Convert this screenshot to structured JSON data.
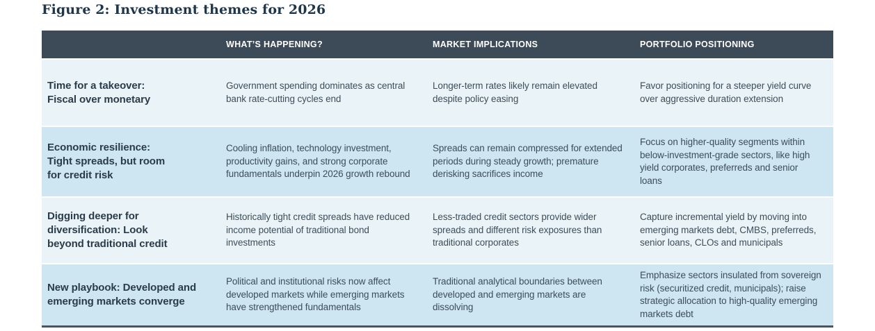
{
  "figure": {
    "title": "Figure 2: Investment themes for 2026"
  },
  "table": {
    "columns": [
      "",
      "WHAT’S HAPPENING?",
      "MARKET IMPLICATIONS",
      "PORTFOLIO POSITIONING"
    ],
    "rows": [
      {
        "theme": "Time for a takeover:\nFiscal over monetary",
        "whats_happening": "Government spending dominates as central bank rate-cutting cycles end",
        "market_implications": "Longer-term rates likely remain elevated despite policy easing",
        "portfolio_positioning": "Favor positioning for a steeper yield curve over aggressive duration extension"
      },
      {
        "theme": "Economic resilience:\nTight spreads, but room\nfor credit risk",
        "whats_happening": "Cooling inflation, technology investment, productivity gains, and strong corporate fundamentals underpin 2026 growth rebound",
        "market_implications": "Spreads can remain compressed for extended periods during steady growth; premature derisking sacrifices income",
        "portfolio_positioning": "Focus on higher-quality segments within below-investment-grade sectors, like high yield corporates, preferreds and senior loans"
      },
      {
        "theme": "Digging deeper for\ndiversification: Look\nbeyond traditional credit",
        "whats_happening": "Historically tight credit spreads have reduced income potential of traditional bond investments",
        "market_implications": "Less-traded credit sectors provide wider spreads and different risk exposures than traditional corporates",
        "portfolio_positioning": "Capture incremental yield by moving into emerging markets debt, CMBS, preferreds, senior loans, CLOs and municipals"
      },
      {
        "theme": "New playbook: Developed and\nemerging markets converge",
        "whats_happening": "Political and institutional risks now affect developed markets while emerging markets have strengthened fundamentals",
        "market_implications": "Traditional analytical boundaries between developed and emerging markets are dissolving",
        "portfolio_positioning": "Emphasize sectors insulated from sovereign risk (securitized credit, municipals); raise strategic allocation to high-quality emerging markets debt"
      }
    ]
  },
  "colors": {
    "header_background": "#3d4a58",
    "header_text": "#ffffff",
    "row_light_background": "#eaf4f8",
    "row_alternate_background": "#cde6f1",
    "title_text": "#1d3649",
    "theme_text": "#2a3b49",
    "body_text": "#3d4d59",
    "bottom_border": "#49545e"
  }
}
